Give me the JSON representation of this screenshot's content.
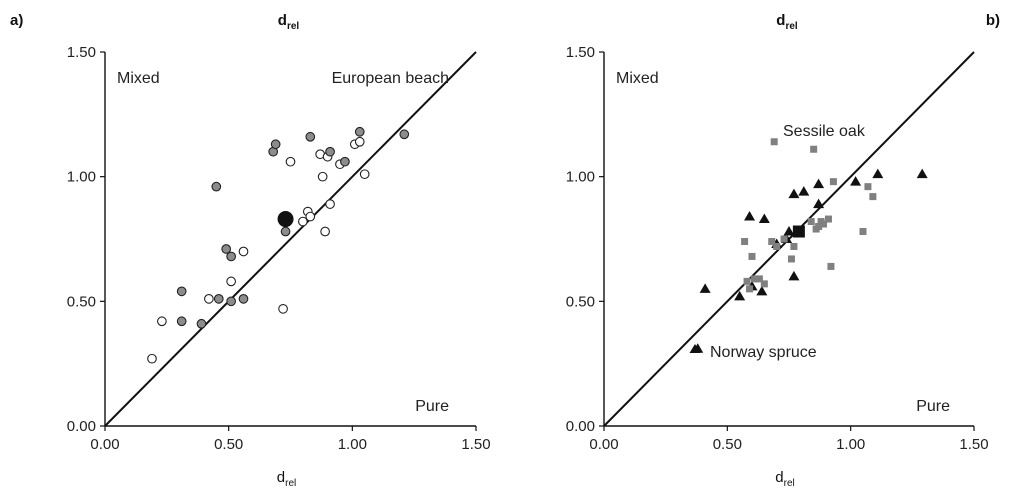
{
  "chart_data": [
    {
      "type": "scatter",
      "panel_label": "a)",
      "top_label": {
        "main": "d",
        "sub": "rel"
      },
      "xlabel": {
        "main": "d",
        "sub": "rel"
      },
      "xlim": [
        0,
        1.5
      ],
      "ylim": [
        0,
        1.5
      ],
      "xticks": [
        "0.00",
        "0.50",
        "1.00",
        "1.50"
      ],
      "yticks": [
        "0.00",
        "0.50",
        "1.00",
        "1.50"
      ],
      "diagonal": true,
      "annotations": [
        "Mixed",
        "European beach",
        "Pure"
      ],
      "series": [
        {
          "marker": "circle-open",
          "color": "#ffffff",
          "points": [
            [
              0.19,
              0.27
            ],
            [
              0.23,
              0.42
            ],
            [
              0.42,
              0.51
            ],
            [
              0.51,
              0.58
            ],
            [
              0.56,
              0.7
            ],
            [
              0.72,
              0.47
            ],
            [
              0.75,
              1.06
            ],
            [
              0.8,
              0.82
            ],
            [
              0.82,
              0.86
            ],
            [
              0.83,
              0.84
            ],
            [
              0.87,
              1.09
            ],
            [
              0.88,
              1.0
            ],
            [
              0.89,
              0.78
            ],
            [
              0.9,
              1.08
            ],
            [
              0.91,
              0.89
            ],
            [
              0.95,
              1.05
            ],
            [
              1.01,
              1.13
            ],
            [
              1.03,
              1.14
            ],
            [
              1.05,
              1.01
            ]
          ]
        },
        {
          "marker": "circle-grey",
          "color": "#8c8c8c",
          "points": [
            [
              0.31,
              0.54
            ],
            [
              0.31,
              0.42
            ],
            [
              0.39,
              0.41
            ],
            [
              0.45,
              0.96
            ],
            [
              0.46,
              0.51
            ],
            [
              0.49,
              0.71
            ],
            [
              0.51,
              0.68
            ],
            [
              0.51,
              0.5
            ],
            [
              0.56,
              0.51
            ],
            [
              0.68,
              1.1
            ],
            [
              0.69,
              1.13
            ],
            [
              0.73,
              0.78
            ],
            [
              0.83,
              1.16
            ],
            [
              0.91,
              1.1
            ],
            [
              0.97,
              1.06
            ],
            [
              1.03,
              1.18
            ],
            [
              1.21,
              1.17
            ]
          ]
        },
        {
          "marker": "circle-mean",
          "color": "#111111",
          "points": [
            [
              0.73,
              0.83
            ]
          ]
        }
      ]
    },
    {
      "type": "scatter",
      "panel_label": "b)",
      "top_label": {
        "main": "d",
        "sub": "rel"
      },
      "xlabel": {
        "main": "d",
        "sub": "rel"
      },
      "xlim": [
        0,
        1.5
      ],
      "ylim": [
        0,
        1.5
      ],
      "xticks": [
        "0.00",
        "0.50",
        "1.00",
        "1.50"
      ],
      "yticks": [
        "0.00",
        "0.50",
        "1.00",
        "1.50"
      ],
      "diagonal": true,
      "annotations": [
        "Mixed",
        "Sessile oak",
        "Norway spruce",
        "Pure"
      ],
      "series": [
        {
          "marker": "triangle",
          "color": "#111111",
          "points": [
            [
              0.38,
              0.31
            ],
            [
              0.41,
              0.55
            ],
            [
              0.55,
              0.52
            ],
            [
              0.59,
              0.84
            ],
            [
              0.6,
              0.56
            ],
            [
              0.64,
              0.54
            ],
            [
              0.65,
              0.83
            ],
            [
              0.7,
              0.73
            ],
            [
              0.74,
              0.75
            ],
            [
              0.75,
              0.78
            ],
            [
              0.77,
              0.6
            ],
            [
              0.77,
              0.93
            ],
            [
              0.81,
              0.94
            ],
            [
              0.87,
              0.89
            ],
            [
              0.87,
              0.97
            ],
            [
              1.02,
              0.98
            ],
            [
              1.11,
              1.01
            ],
            [
              1.29,
              1.01
            ]
          ]
        },
        {
          "marker": "square",
          "color": "#808080",
          "points": [
            [
              0.57,
              0.74
            ],
            [
              0.58,
              0.58
            ],
            [
              0.59,
              0.55
            ],
            [
              0.6,
              0.68
            ],
            [
              0.61,
              0.59
            ],
            [
              0.63,
              0.59
            ],
            [
              0.65,
              0.57
            ],
            [
              0.68,
              0.74
            ],
            [
              0.69,
              1.14
            ],
            [
              0.7,
              0.72
            ],
            [
              0.73,
              0.75
            ],
            [
              0.76,
              0.67
            ],
            [
              0.77,
              0.72
            ],
            [
              0.84,
              0.82
            ],
            [
              0.85,
              1.11
            ],
            [
              0.86,
              0.79
            ],
            [
              0.87,
              0.8
            ],
            [
              0.88,
              0.82
            ],
            [
              0.89,
              0.81
            ],
            [
              0.91,
              0.83
            ],
            [
              0.92,
              0.64
            ],
            [
              0.93,
              0.98
            ],
            [
              1.05,
              0.78
            ],
            [
              1.07,
              0.96
            ],
            [
              1.09,
              0.92
            ]
          ]
        },
        {
          "marker": "square-mean",
          "color": "#111111",
          "points": [
            [
              0.79,
              0.78
            ]
          ]
        }
      ]
    }
  ]
}
